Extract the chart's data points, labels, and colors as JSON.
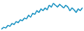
{
  "values": [
    2,
    4,
    3,
    6,
    5,
    8,
    7,
    10,
    9,
    12,
    11,
    14,
    13,
    17,
    15,
    19,
    18,
    22,
    20,
    24,
    22,
    25,
    23,
    28,
    26,
    30,
    28,
    26,
    29,
    27,
    25,
    28,
    26,
    22,
    25,
    23,
    20,
    24,
    22,
    25
  ],
  "line_color": "#2196c4",
  "background_color": "#ffffff",
  "linewidth": 1.2
}
